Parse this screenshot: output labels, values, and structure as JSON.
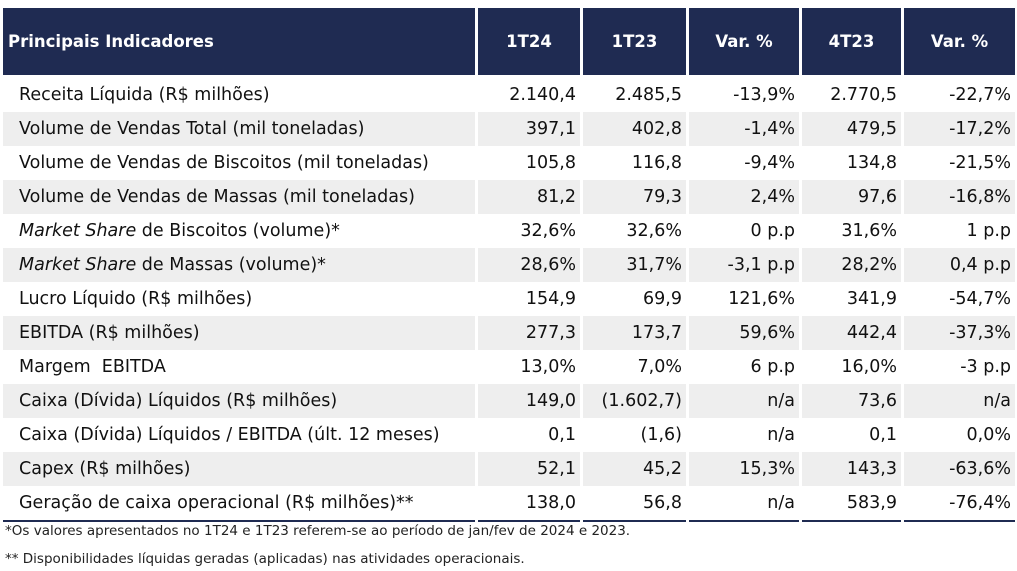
{
  "table": {
    "headers": [
      "Principais Indicadores",
      "1T24",
      "1T23",
      "Var. %",
      "4T23",
      "Var. %"
    ],
    "rows": [
      {
        "label_italic": "",
        "label": "Receita Líquida (R$ milhões)",
        "values": [
          "2.140,4",
          "2.485,5",
          "-13,9%",
          "2.770,5",
          "-22,7%"
        ]
      },
      {
        "label_italic": "",
        "label": "Volume de Vendas Total (mil toneladas)",
        "values": [
          "397,1",
          "402,8",
          "-1,4%",
          "479,5",
          "-17,2%"
        ]
      },
      {
        "label_italic": "",
        "label": "Volume de Vendas de Biscoitos (mil toneladas)",
        "values": [
          "105,8",
          "116,8",
          "-9,4%",
          "134,8",
          "-21,5%"
        ]
      },
      {
        "label_italic": "",
        "label": "Volume de Vendas de Massas (mil toneladas)",
        "values": [
          "81,2",
          "79,3",
          "2,4%",
          "97,6",
          "-16,8%"
        ]
      },
      {
        "label_italic": "Market Share",
        "label": " de Biscoitos (volume)*",
        "values": [
          "32,6%",
          "32,6%",
          "0 p.p",
          "31,6%",
          "1 p.p"
        ]
      },
      {
        "label_italic": "Market Share",
        "label": " de Massas (volume)*",
        "values": [
          "28,6%",
          "31,7%",
          "-3,1 p.p",
          "28,2%",
          "0,4 p.p"
        ]
      },
      {
        "label_italic": "",
        "label": "Lucro Líquido (R$ milhões)",
        "values": [
          "154,9",
          "69,9",
          "121,6%",
          "341,9",
          "-54,7%"
        ]
      },
      {
        "label_italic": "",
        "label": "EBITDA (R$ milhões)",
        "values": [
          "277,3",
          "173,7",
          "59,6%",
          "442,4",
          "-37,3%"
        ]
      },
      {
        "label_italic": "",
        "label": "Margem  EBITDA",
        "values": [
          "13,0%",
          "7,0%",
          "6 p.p",
          "16,0%",
          "-3 p.p"
        ]
      },
      {
        "label_italic": "",
        "label": "Caixa (Dívida) Líquidos (R$ milhões)",
        "values": [
          "149,0",
          "(1.602,7)",
          "n/a",
          "73,6",
          "n/a"
        ]
      },
      {
        "label_italic": "",
        "label": "Caixa (Dívida) Líquidos / EBITDA (últ. 12 meses)",
        "values": [
          "0,1",
          "(1,6)",
          "n/a",
          "0,1",
          "0,0%"
        ]
      },
      {
        "label_italic": "",
        "label": "Capex (R$ milhões)",
        "values": [
          "52,1",
          "45,2",
          "15,3%",
          "143,3",
          "-63,6%"
        ]
      },
      {
        "label_italic": "",
        "label": "Geração de caixa operacional (R$ milhões)**",
        "values": [
          "138,0",
          "56,8",
          "n/a",
          "583,9",
          "-76,4%"
        ]
      }
    ]
  },
  "footnotes": [
    "*Os valores apresentados no 1T24 e 1T23 referem-se ao período de jan/fev  de 2024 e 2023.",
    "** Disponibilidades líquidas geradas (aplicadas) nas atividades operacionais."
  ]
}
